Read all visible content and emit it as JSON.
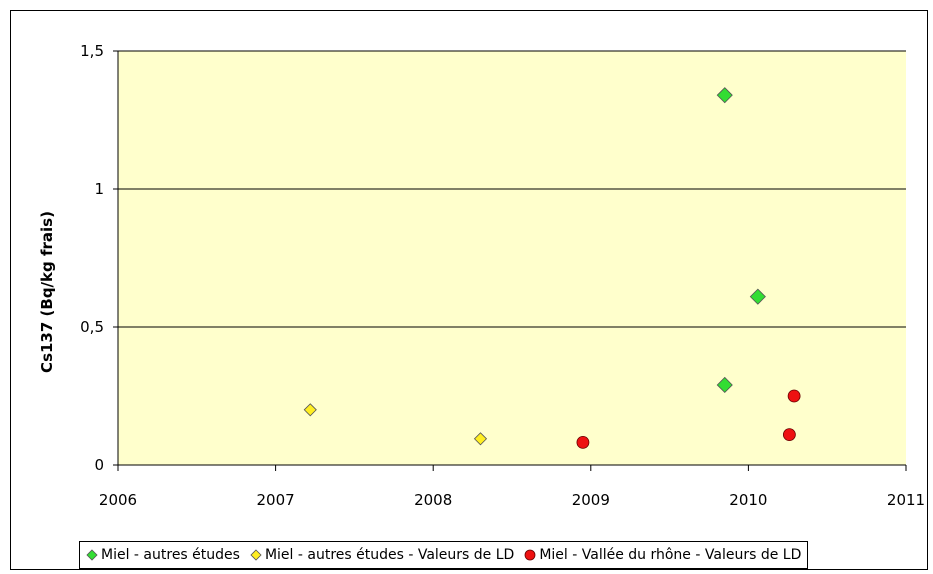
{
  "chart_data": {
    "type": "scatter",
    "title": "",
    "xlabel": "",
    "ylabel": "Cs137 (Bq/kg frais)",
    "xlim": [
      2006,
      2011
    ],
    "ylim": [
      0,
      1.5
    ],
    "x_ticks": [
      2006,
      2007,
      2008,
      2009,
      2010,
      2011
    ],
    "x_tick_labels": [
      "2006",
      "2007",
      "2008",
      "2009",
      "2010",
      "2011"
    ],
    "y_ticks": [
      0,
      0.5,
      1,
      1.5
    ],
    "y_tick_labels": [
      "0",
      "0,5",
      "1",
      "1,5"
    ],
    "grid": "horizontal",
    "plot_background": "#ffffcc",
    "legend_position": "bottom",
    "series": [
      {
        "name": "Miel - autres études",
        "marker": "diamond",
        "color": "#33dd33",
        "points": [
          [
            2009.85,
            1.34
          ],
          [
            2010.06,
            0.61
          ],
          [
            2009.85,
            0.29
          ]
        ]
      },
      {
        "name": "Miel - autres études - Valeurs de LD",
        "marker": "diamond",
        "color": "#ffee22",
        "points": [
          [
            2007.22,
            0.2
          ],
          [
            2008.3,
            0.095
          ]
        ]
      },
      {
        "name": "Miel - Vallée du rhône - Valeurs de LD",
        "marker": "circle",
        "color": "#ee1111",
        "points": [
          [
            2008.95,
            0.082
          ],
          [
            2010.26,
            0.11
          ],
          [
            2010.29,
            0.25
          ]
        ]
      }
    ]
  }
}
